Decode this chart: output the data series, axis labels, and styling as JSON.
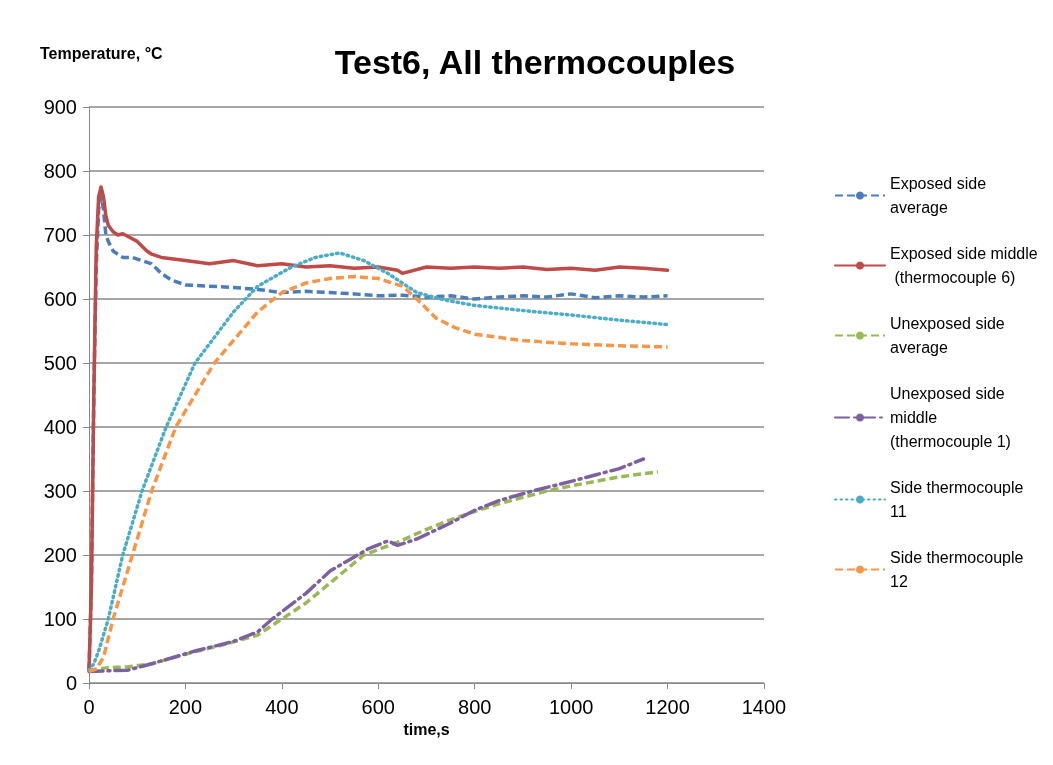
{
  "chart_data": {
    "type": "line",
    "title": "Test6, All thermocouples",
    "xlabel": "time,s",
    "ylabel": "Temperature, °C",
    "xlim": [
      0,
      1400
    ],
    "xticks": [
      0,
      200,
      400,
      600,
      800,
      1000,
      1200,
      1400
    ],
    "ylim": [
      0,
      900
    ],
    "yticks": [
      0,
      100,
      200,
      300,
      400,
      500,
      600,
      700,
      800,
      900
    ],
    "grid": "y",
    "legend": "right",
    "marker": "none",
    "series": [
      {
        "name": "Exposed side average",
        "color": "#4a7ebb",
        "line_style": "dashed",
        "x": [
          0,
          5,
          10,
          15,
          20,
          25,
          30,
          35,
          40,
          50,
          70,
          90,
          110,
          130,
          150,
          170,
          200,
          250,
          300,
          350,
          400,
          450,
          500,
          550,
          600,
          650,
          700,
          750,
          800,
          850,
          900,
          950,
          1000,
          1050,
          1100,
          1150,
          1200
        ],
        "values": [
          20,
          150,
          450,
          650,
          740,
          760,
          740,
          700,
          690,
          675,
          665,
          665,
          660,
          655,
          640,
          630,
          622,
          620,
          618,
          615,
          610,
          612,
          610,
          608,
          605,
          606,
          603,
          605,
          600,
          603,
          605,
          603,
          608,
          602,
          605,
          603,
          605
        ]
      },
      {
        "name": "Exposed side middle (thermocouple 6)",
        "color": "#be4b48",
        "line_style": "solid",
        "x": [
          0,
          5,
          10,
          15,
          20,
          25,
          30,
          35,
          40,
          50,
          60,
          70,
          80,
          100,
          120,
          130,
          150,
          200,
          250,
          300,
          350,
          400,
          450,
          500,
          550,
          600,
          640,
          650,
          700,
          750,
          800,
          850,
          900,
          950,
          1000,
          1050,
          1100,
          1150,
          1200
        ],
        "values": [
          20,
          150,
          450,
          680,
          760,
          775,
          760,
          730,
          715,
          705,
          700,
          702,
          698,
          690,
          675,
          670,
          665,
          660,
          655,
          660,
          652,
          655,
          650,
          652,
          648,
          650,
          645,
          640,
          650,
          648,
          650,
          648,
          650,
          646,
          648,
          645,
          650,
          648,
          645
        ]
      },
      {
        "name": "Unexposed side average",
        "color": "#98b954",
        "line_style": "dashed",
        "x": [
          0,
          40,
          80,
          130,
          200,
          280,
          350,
          400,
          450,
          490,
          530,
          570,
          640,
          700,
          750,
          800,
          850,
          900,
          950,
          1000,
          1050,
          1100,
          1180
        ],
        "values": [
          20,
          24,
          25,
          30,
          45,
          60,
          75,
          100,
          125,
          150,
          175,
          200,
          220,
          240,
          255,
          268,
          280,
          290,
          300,
          308,
          315,
          322,
          330
        ]
      },
      {
        "name": "Unexposed side middle (thermocouple 1)",
        "color": "#7d60a0",
        "line_style": "dashdot",
        "x": [
          0,
          40,
          80,
          130,
          220,
          300,
          350,
          380,
          450,
          500,
          580,
          620,
          640,
          680,
          750,
          800,
          850,
          920,
          1000,
          1050,
          1100,
          1150
        ],
        "values": [
          18,
          19,
          20,
          30,
          50,
          65,
          80,
          100,
          140,
          175,
          210,
          222,
          215,
          225,
          250,
          270,
          285,
          300,
          315,
          325,
          335,
          350
        ]
      },
      {
        "name": "Side thermocouple 11",
        "color": "#4bacc6",
        "line_style": "dotted",
        "x": [
          0,
          10,
          20,
          40,
          70,
          110,
          160,
          220,
          300,
          350,
          420,
          470,
          520,
          570,
          620,
          680,
          740,
          800,
          900,
          1000,
          1100,
          1200
        ],
        "values": [
          20,
          30,
          50,
          100,
          200,
          300,
          400,
          500,
          580,
          620,
          650,
          665,
          672,
          660,
          640,
          610,
          598,
          590,
          582,
          575,
          567,
          560
        ]
      },
      {
        "name": "Side thermocouple 12",
        "color": "#f79646",
        "line_style": "dashed",
        "x": [
          0,
          15,
          30,
          50,
          90,
          130,
          180,
          260,
          350,
          400,
          450,
          500,
          550,
          600,
          650,
          680,
          720,
          760,
          800,
          900,
          1000,
          1100,
          1200
        ],
        "values": [
          18,
          22,
          40,
          100,
          200,
          300,
          400,
          500,
          580,
          610,
          625,
          632,
          635,
          632,
          620,
          600,
          570,
          555,
          545,
          535,
          530,
          527,
          525
        ]
      }
    ]
  }
}
